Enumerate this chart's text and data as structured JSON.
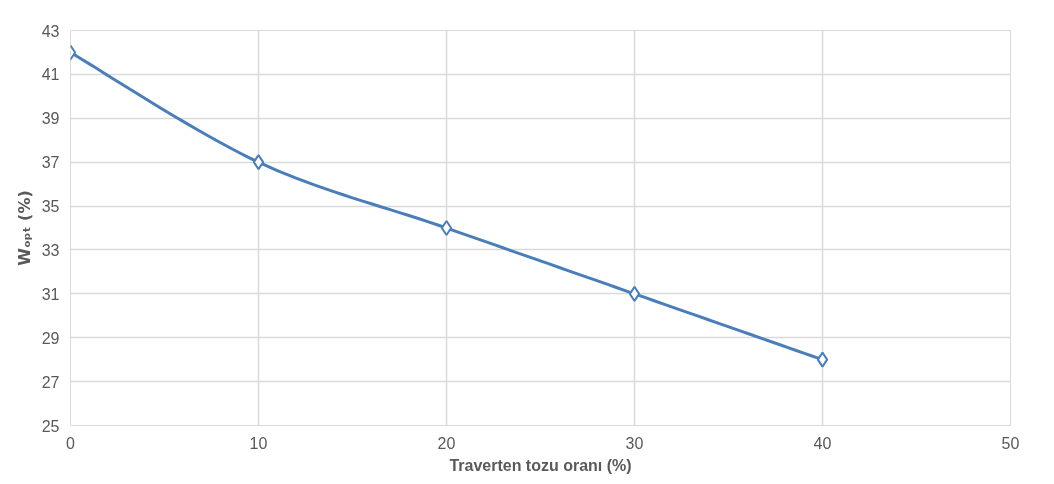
{
  "chart_data": {
    "type": "line",
    "xlabel": "Traverten tozu oranı (%)",
    "ylabel": "Wₒₚₜ (%)",
    "x": [
      0,
      10,
      20,
      30,
      40
    ],
    "series": [
      {
        "color": "#4a7ebb",
        "values": [
          42,
          37,
          34,
          31,
          28
        ]
      }
    ],
    "xlim": [
      0,
      50
    ],
    "xticks": [
      0,
      10,
      20,
      30,
      40,
      50
    ],
    "ylim": [
      25,
      43
    ],
    "yticks": [
      25,
      27,
      29,
      31,
      33,
      35,
      37,
      39,
      41,
      43
    ],
    "grid": true,
    "marker": "diamond",
    "line_style": "solid"
  }
}
